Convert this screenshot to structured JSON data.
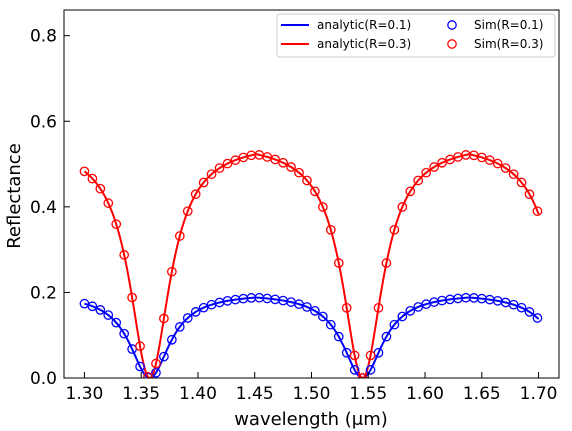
{
  "chart_data": {
    "type": "line",
    "title": "",
    "xlabel": "wavelength (μm)",
    "ylabel": "Reflectance",
    "xlim": [
      1.282,
      1.718
    ],
    "ylim": [
      0.0,
      0.86
    ],
    "xticks": [
      "1.30",
      "1.35",
      "1.40",
      "1.45",
      "1.50",
      "1.55",
      "1.60",
      "1.65",
      "1.70"
    ],
    "yticks": [
      "0.0",
      "0.2",
      "0.4",
      "0.6",
      "0.8"
    ],
    "grid": false,
    "legend_position": "top-right",
    "colors": {
      "blue": "#0000ff",
      "red": "#ff0000"
    },
    "series": [
      {
        "name": "analytic(R=0.1)",
        "style": "line",
        "color": "#0000ff",
        "R": 0.1,
        "center": 1.3575,
        "period": 0.1875,
        "halfwidth": 0.0215
      },
      {
        "name": "analytic(R=0.3)",
        "style": "line",
        "color": "#ff0000",
        "R": 0.3,
        "center": 1.3575,
        "period": 0.1875,
        "halfwidth": 0.0215
      },
      {
        "name": "Sim(R=0.1)",
        "style": "circle",
        "color": "#0000ff",
        "R": 0.1,
        "x_start": 1.3,
        "x_end": 1.7,
        "x_step": 0.007
      },
      {
        "name": "Sim(R=0.3)",
        "style": "circle",
        "color": "#ff0000",
        "R": 0.3,
        "x_start": 1.3,
        "x_end": 1.7,
        "x_step": 0.007
      }
    ]
  }
}
